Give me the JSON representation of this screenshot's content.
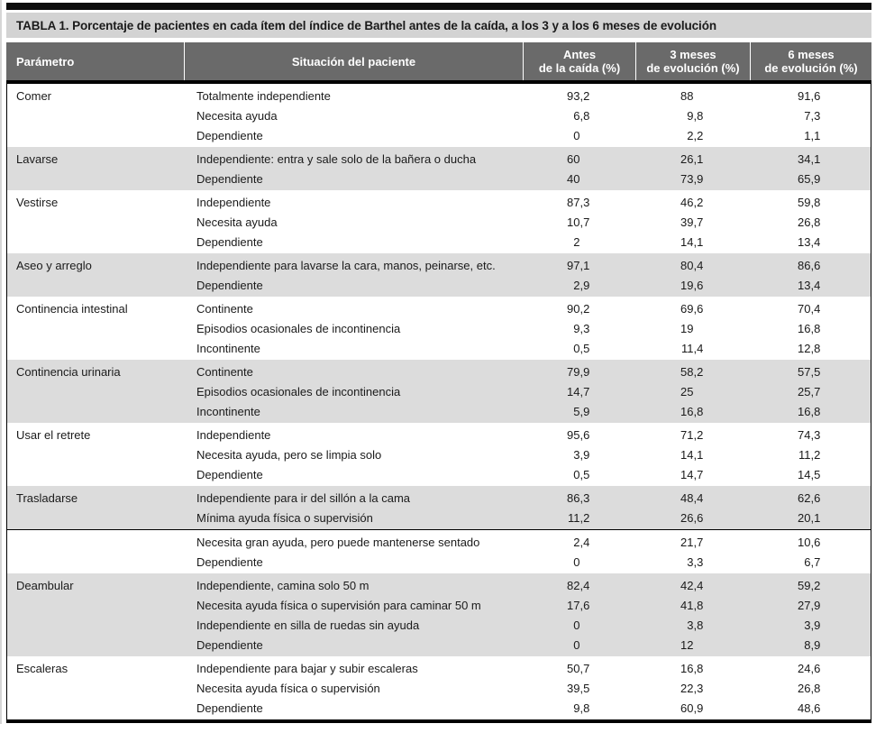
{
  "title": "TABLA 1. Porcentaje de pacientes en cada ítem del índice de Barthel antes de la caída, a los 3 y a los 6 meses de evolución",
  "columns": {
    "parameter": "Parámetro",
    "situation": "Situación del paciente",
    "before_line1": "Antes",
    "before_line2": "de la caída (%)",
    "m3_line1": "3 meses",
    "m3_line2": "de evolución (%)",
    "m6_line1": "6 meses",
    "m6_line2": "de evolución (%)"
  },
  "colors": {
    "header_bg": "#6a6a6a",
    "title_bg": "#d3d3d3",
    "band_bg": "#dcdcdc",
    "border": "#000000"
  },
  "chart_data": {
    "type": "table",
    "title": "TABLA 1. Porcentaje de pacientes en cada ítem del índice de Barthel antes de la caída, a los 3 y a los 6 meses de evolución",
    "column_headers": [
      "Parámetro",
      "Situación del paciente",
      "Antes de la caída (%)",
      "3 meses de evolución (%)",
      "6 meses de evolución (%)"
    ]
  },
  "bands": [
    {
      "shaded": false,
      "ruled": false,
      "parameter": "Comer",
      "rows": [
        {
          "situation": "Totalmente independiente",
          "before": "93,2",
          "m3": "88",
          "m6": "91,6"
        },
        {
          "situation": "Necesita ayuda",
          "before": "6,8",
          "m3": "9,8",
          "m6": "7,3"
        },
        {
          "situation": "Dependiente",
          "before": "0",
          "m3": "2,2",
          "m6": "1,1"
        }
      ]
    },
    {
      "shaded": true,
      "ruled": false,
      "parameter": "Lavarse",
      "rows": [
        {
          "situation": "Independiente: entra y sale solo de la bañera o ducha",
          "before": "60",
          "m3": "26,1",
          "m6": "34,1"
        },
        {
          "situation": "Dependiente",
          "before": "40",
          "m3": "73,9",
          "m6": "65,9"
        }
      ]
    },
    {
      "shaded": false,
      "ruled": false,
      "parameter": "Vestirse",
      "rows": [
        {
          "situation": "Independiente",
          "before": "87,3",
          "m3": "46,2",
          "m6": "59,8"
        },
        {
          "situation": "Necesita ayuda",
          "before": "10,7",
          "m3": "39,7",
          "m6": "26,8"
        },
        {
          "situation": "Dependiente",
          "before": "2",
          "m3": "14,1",
          "m6": "13,4"
        }
      ]
    },
    {
      "shaded": true,
      "ruled": false,
      "parameter": "Aseo y arreglo",
      "rows": [
        {
          "situation": "Independiente para lavarse la cara, manos, peinarse, etc.",
          "before": "97,1",
          "m3": "80,4",
          "m6": "86,6"
        },
        {
          "situation": "Dependiente",
          "before": "2,9",
          "m3": "19,6",
          "m6": "13,4"
        }
      ]
    },
    {
      "shaded": false,
      "ruled": false,
      "parameter": "Continencia intestinal",
      "rows": [
        {
          "situation": "Continente",
          "before": "90,2",
          "m3": "69,6",
          "m6": "70,4"
        },
        {
          "situation": "Episodios ocasionales de incontinencia",
          "before": "9,3",
          "m3": "19",
          "m6": "16,8"
        },
        {
          "situation": "Incontinente",
          "before": "0,5",
          "m3": "11,4",
          "m6": "12,8"
        }
      ]
    },
    {
      "shaded": true,
      "ruled": false,
      "parameter": "Continencia urinaria",
      "rows": [
        {
          "situation": "Continente",
          "before": "79,9",
          "m3": "58,2",
          "m6": "57,5"
        },
        {
          "situation": "Episodios ocasionales de incontinencia",
          "before": "14,7",
          "m3": "25",
          "m6": "25,7"
        },
        {
          "situation": "Incontinente",
          "before": "5,9",
          "m3": "16,8",
          "m6": "16,8"
        }
      ]
    },
    {
      "shaded": false,
      "ruled": false,
      "parameter": "Usar el retrete",
      "rows": [
        {
          "situation": "Independiente",
          "before": "95,6",
          "m3": "71,2",
          "m6": "74,3"
        },
        {
          "situation": "Necesita ayuda, pero se limpia solo",
          "before": "3,9",
          "m3": "14,1",
          "m6": "11,2"
        },
        {
          "situation": "Dependiente",
          "before": "0,5",
          "m3": "14,7",
          "m6": "14,5"
        }
      ]
    },
    {
      "shaded": true,
      "ruled": false,
      "parameter": "Trasladarse",
      "rows": [
        {
          "situation": "Independiente para ir del sillón a la cama",
          "before": "86,3",
          "m3": "48,4",
          "m6": "62,6"
        },
        {
          "situation": "Mínima ayuda física o supervisión",
          "before": "11,2",
          "m3": "26,6",
          "m6": "20,1"
        }
      ]
    },
    {
      "shaded": false,
      "ruled": true,
      "parameter": "",
      "rows": [
        {
          "situation": "Necesita gran ayuda, pero puede mantenerse sentado",
          "before": "2,4",
          "m3": "21,7",
          "m6": "10,6"
        },
        {
          "situation": "Dependiente",
          "before": "0",
          "m3": "3,3",
          "m6": "6,7"
        }
      ]
    },
    {
      "shaded": true,
      "ruled": false,
      "parameter": "Deambular",
      "rows": [
        {
          "situation": "Independiente, camina solo 50 m",
          "before": "82,4",
          "m3": "42,4",
          "m6": "59,2"
        },
        {
          "situation": "Necesita ayuda física o supervisión para caminar 50 m",
          "before": "17,6",
          "m3": "41,8",
          "m6": "27,9"
        },
        {
          "situation": "Independiente en silla de ruedas sin ayuda",
          "before": "0",
          "m3": "3,8",
          "m6": "3,9"
        },
        {
          "situation": "Dependiente",
          "before": "0",
          "m3": "12",
          "m6": "8,9"
        }
      ]
    },
    {
      "shaded": false,
      "ruled": false,
      "parameter": "Escaleras",
      "rows": [
        {
          "situation": "Independiente para bajar y subir escaleras",
          "before": "50,7",
          "m3": "16,8",
          "m6": "24,6"
        },
        {
          "situation": "Necesita ayuda física o supervisión",
          "before": "39,5",
          "m3": "22,3",
          "m6": "26,8"
        },
        {
          "situation": "Dependiente",
          "before": "9,8",
          "m3": "60,9",
          "m6": "48,6"
        }
      ]
    }
  ]
}
